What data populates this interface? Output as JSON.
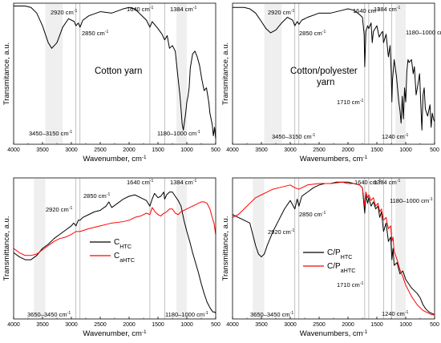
{
  "chart_data": [
    {
      "type": "line",
      "panel_position": "top-left",
      "title": "Cotton yarn",
      "xlabel": "Wavenumber, cm",
      "xlabel_sup": "-1",
      "ylabel": "Transmitance, a.u.",
      "xlim": [
        4000,
        500
      ],
      "xticks": [
        "4000",
        "3500",
        "3000",
        "2500",
        "2000",
        "1500",
        "1000",
        "500"
      ],
      "bands": [
        [
          3450,
          3150
        ],
        [
          1180,
          1000
        ]
      ],
      "vlines": [
        2920,
        2850,
        1640,
        1384
      ],
      "annotations": [
        {
          "text": "2920 cm",
          "sup": "-1",
          "x": 2920
        },
        {
          "text": "2850 cm",
          "sup": "-1",
          "x": 2850
        },
        {
          "text": "1640 cm",
          "sup": "-1",
          "x": 1640
        },
        {
          "text": "1384 cm",
          "sup": "-1",
          "x": 1384
        },
        {
          "text": "3450–3150 cm",
          "sup": "-1",
          "x": 3300
        },
        {
          "text": "1180–1000 cm",
          "sup": "-1",
          "x": 1090
        }
      ],
      "series": [
        {
          "color": "#000000",
          "x": [
            4000,
            3800,
            3700,
            3600,
            3500,
            3400,
            3340,
            3250,
            3150,
            3050,
            2950,
            2920,
            2880,
            2850,
            2800,
            2700,
            2500,
            2300,
            2100,
            2000,
            1900,
            1800,
            1700,
            1640,
            1600,
            1500,
            1430,
            1384,
            1340,
            1300,
            1250,
            1200,
            1160,
            1120,
            1100,
            1080,
            1060,
            1040,
            1020,
            1000,
            980,
            960,
            940,
            900,
            860,
            820,
            780,
            740,
            700,
            660,
            620,
            600,
            560,
            540,
            520,
            500
          ],
          "y": [
            0.98,
            0.98,
            0.97,
            0.93,
            0.84,
            0.72,
            0.68,
            0.72,
            0.83,
            0.89,
            0.87,
            0.84,
            0.86,
            0.83,
            0.88,
            0.91,
            0.94,
            0.93,
            0.96,
            0.97,
            0.96,
            0.92,
            0.88,
            0.83,
            0.87,
            0.82,
            0.78,
            0.74,
            0.77,
            0.68,
            0.7,
            0.66,
            0.5,
            0.35,
            0.25,
            0.14,
            0.1,
            0.16,
            0.22,
            0.3,
            0.34,
            0.4,
            0.54,
            0.64,
            0.66,
            0.62,
            0.56,
            0.46,
            0.38,
            0.4,
            0.3,
            0.22,
            0.14,
            0.06,
            0.12,
            0.04
          ]
        }
      ]
    },
    {
      "type": "line",
      "panel_position": "top-right",
      "title": "Cotton/polyester",
      "title_line2": "yarn",
      "xlabel": "Wavenumbers, cm",
      "xlabel_sup": "-1",
      "ylabel": "Transmitance, a.u.",
      "xlim": [
        4000,
        500
      ],
      "xticks": [
        "4000",
        "3500",
        "3000",
        "2500",
        "2000",
        "1500",
        "1000",
        "500"
      ],
      "bands": [
        [
          3450,
          3150
        ],
        [
          1180,
          1000
        ]
      ],
      "vlines": [
        2920,
        2850,
        1710,
        1640,
        1384,
        1240
      ],
      "annotations": [
        {
          "text": "2920 cm",
          "sup": "-1",
          "x": 2920
        },
        {
          "text": "2850 cm",
          "sup": "-1",
          "x": 2850
        },
        {
          "text": "1640 cm",
          "sup": "-1",
          "x": 1640
        },
        {
          "text": "1384 cm",
          "sup": "-1",
          "x": 1384
        },
        {
          "text": "1180–1000 cm",
          "sup": "-1",
          "x": 1090
        },
        {
          "text": "1710 cm",
          "sup": "-1",
          "x": 1710
        },
        {
          "text": "1240 cm",
          "sup": "-1",
          "x": 1240
        },
        {
          "text": "3450–3150 cm",
          "sup": "-1",
          "x": 3300
        }
      ],
      "series": [
        {
          "color": "#000000",
          "x": [
            4000,
            3800,
            3700,
            3600,
            3500,
            3420,
            3340,
            3250,
            3150,
            3050,
            2960,
            2920,
            2880,
            2850,
            2800,
            2700,
            2500,
            2300,
            2100,
            2000,
            1900,
            1800,
            1750,
            1720,
            1710,
            1690,
            1660,
            1640,
            1600,
            1580,
            1560,
            1500,
            1460,
            1420,
            1400,
            1384,
            1340,
            1300,
            1270,
            1250,
            1240,
            1230,
            1200,
            1160,
            1120,
            1100,
            1080,
            1060,
            1040,
            1020,
            1000,
            980,
            960,
            940,
            900,
            870,
            850,
            820,
            790,
            760,
            740,
            720,
            700,
            680,
            660,
            620,
            580,
            560,
            540,
            520,
            500
          ],
          "y": [
            0.97,
            0.97,
            0.96,
            0.93,
            0.87,
            0.82,
            0.79,
            0.81,
            0.86,
            0.9,
            0.88,
            0.84,
            0.87,
            0.85,
            0.88,
            0.9,
            0.93,
            0.93,
            0.95,
            0.96,
            0.95,
            0.92,
            0.9,
            0.78,
            0.55,
            0.8,
            0.84,
            0.82,
            0.86,
            0.72,
            0.8,
            0.84,
            0.76,
            0.79,
            0.8,
            0.72,
            0.78,
            0.62,
            0.7,
            0.5,
            0.3,
            0.45,
            0.6,
            0.48,
            0.3,
            0.24,
            0.15,
            0.34,
            0.18,
            0.4,
            0.3,
            0.52,
            0.6,
            0.58,
            0.6,
            0.5,
            0.55,
            0.35,
            0.42,
            0.5,
            0.3,
            0.1,
            0.35,
            0.4,
            0.25,
            0.2,
            0.28,
            0.12,
            0.22,
            0.18,
            0.16
          ]
        }
      ]
    },
    {
      "type": "line",
      "panel_position": "bottom-left",
      "xlabel": "Wavenumber, cm",
      "xlabel_sup": "-1",
      "ylabel": "Transmittance, a.u.",
      "xlim": [
        4000,
        500
      ],
      "xticks": [
        "4000",
        "3500",
        "3000",
        "2500",
        "2000",
        "1500",
        "1000",
        "500"
      ],
      "bands": [
        [
          3650,
          3450
        ],
        [
          1180,
          1000
        ]
      ],
      "vlines": [
        2920,
        2850,
        1640,
        1384
      ],
      "annotations": [
        {
          "text": "2920 cm",
          "sup": "-1",
          "x": 2920
        },
        {
          "text": "2850 cm",
          "sup": "-1",
          "x": 2850
        },
        {
          "text": "1640 cm",
          "sup": "-1",
          "x": 1640
        },
        {
          "text": "1384 cm",
          "sup": "-1",
          "x": 1384
        },
        {
          "text": "3650–3450 cm",
          "sup": "-1",
          "x": 3550
        },
        {
          "text": "1180–1000 cm",
          "sup": "-1",
          "x": 1090
        }
      ],
      "legend": {
        "position": "center-left"
      },
      "series": [
        {
          "name": "C",
          "name_sub": "HTC",
          "color": "#000000",
          "x": [
            4000,
            3900,
            3800,
            3700,
            3600,
            3500,
            3400,
            3300,
            3200,
            3100,
            3000,
            2960,
            2920,
            2880,
            2850,
            2800,
            2700,
            2600,
            2500,
            2400,
            2350,
            2300,
            2200,
            2100,
            2000,
            1900,
            1800,
            1700,
            1640,
            1600,
            1560,
            1500,
            1450,
            1400,
            1384,
            1350,
            1300,
            1250,
            1200,
            1150,
            1100,
            1050,
            1000,
            950,
            900,
            850,
            800,
            750,
            700,
            650,
            600,
            550,
            520,
            500
          ],
          "y": [
            0.47,
            0.44,
            0.42,
            0.42,
            0.45,
            0.5,
            0.53,
            0.57,
            0.6,
            0.63,
            0.66,
            0.68,
            0.66,
            0.7,
            0.7,
            0.72,
            0.74,
            0.76,
            0.77,
            0.8,
            0.83,
            0.79,
            0.82,
            0.85,
            0.87,
            0.88,
            0.86,
            0.84,
            0.8,
            0.85,
            0.89,
            0.86,
            0.87,
            0.9,
            0.85,
            0.88,
            0.9,
            0.9,
            0.87,
            0.84,
            0.8,
            0.7,
            0.62,
            0.55,
            0.47,
            0.4,
            0.33,
            0.25,
            0.18,
            0.12,
            0.08,
            0.05,
            0.05,
            0.04
          ]
        },
        {
          "name": "C",
          "name_sub": "aHTC",
          "color": "#ff0000",
          "x": [
            4000,
            3900,
            3800,
            3700,
            3600,
            3500,
            3400,
            3300,
            3200,
            3100,
            3000,
            2920,
            2850,
            2700,
            2500,
            2300,
            2100,
            2000,
            1900,
            1800,
            1700,
            1640,
            1600,
            1550,
            1500,
            1450,
            1400,
            1384,
            1350,
            1300,
            1250,
            1200,
            1150,
            1100,
            1050,
            1000,
            950,
            900,
            850,
            800,
            750,
            700,
            650,
            600,
            560,
            530,
            500
          ],
          "y": [
            0.5,
            0.47,
            0.45,
            0.45,
            0.46,
            0.49,
            0.52,
            0.55,
            0.57,
            0.58,
            0.6,
            0.62,
            0.62,
            0.64,
            0.66,
            0.68,
            0.69,
            0.7,
            0.72,
            0.73,
            0.75,
            0.74,
            0.79,
            0.76,
            0.74,
            0.73,
            0.75,
            0.75,
            0.76,
            0.78,
            0.78,
            0.75,
            0.74,
            0.76,
            0.77,
            0.78,
            0.79,
            0.8,
            0.81,
            0.82,
            0.83,
            0.83,
            0.82,
            0.78,
            0.72,
            0.68,
            0.6
          ]
        }
      ]
    },
    {
      "type": "line",
      "panel_position": "bottom-right",
      "xlabel": "Wavenumbers, cm",
      "xlabel_sup": "-1",
      "ylabel": "Transmittance, a.u.",
      "xlim": [
        4000,
        500
      ],
      "xticks": [
        "4000",
        "3500",
        "3000",
        "2500",
        "2000",
        "1500",
        "1000",
        "500"
      ],
      "bands": [
        [
          3650,
          3450
        ],
        [
          1180,
          1000
        ]
      ],
      "vlines": [
        2920,
        2850,
        1710,
        1640,
        1384,
        1240
      ],
      "annotations": [
        {
          "text": "2920 cm",
          "sup": "-1",
          "x": 2920
        },
        {
          "text": "2850 cm",
          "sup": "-1",
          "x": 2850
        },
        {
          "text": "1640 cm",
          "sup": "-1",
          "x": 1640
        },
        {
          "text": "1384 cm",
          "sup": "-1",
          "x": 1384
        },
        {
          "text": "1180–1000 cm",
          "sup": "-1",
          "x": 1090
        },
        {
          "text": "1710 cm",
          "sup": "-1",
          "x": 1710
        },
        {
          "text": "1240 cm",
          "sup": "-1",
          "x": 1240
        },
        {
          "text": "3650–3450 cm",
          "sup": "-1",
          "x": 3550
        }
      ],
      "legend": {
        "position": "center-right"
      },
      "series": [
        {
          "name": "C/P",
          "name_sub": "HTC",
          "color": "#000000",
          "x": [
            4000,
            3900,
            3800,
            3700,
            3650,
            3600,
            3550,
            3500,
            3450,
            3400,
            3300,
            3200,
            3100,
            3000,
            2920,
            2880,
            2850,
            2800,
            2700,
            2600,
            2500,
            2400,
            2300,
            2200,
            2100,
            2000,
            1900,
            1800,
            1750,
            1710,
            1690,
            1660,
            1640,
            1600,
            1560,
            1520,
            1480,
            1450,
            1420,
            1384,
            1340,
            1300,
            1260,
            1240,
            1220,
            1200,
            1150,
            1100,
            1050,
            1000,
            950,
            900,
            850,
            800,
            750,
            700,
            650,
            600,
            550,
            500
          ],
          "y": [
            0.74,
            0.72,
            0.7,
            0.68,
            0.6,
            0.52,
            0.46,
            0.44,
            0.46,
            0.52,
            0.62,
            0.7,
            0.78,
            0.84,
            0.78,
            0.85,
            0.8,
            0.87,
            0.9,
            0.93,
            0.95,
            0.96,
            0.96,
            0.97,
            0.97,
            0.97,
            0.96,
            0.95,
            0.93,
            0.75,
            0.88,
            0.82,
            0.86,
            0.8,
            0.83,
            0.78,
            0.8,
            0.72,
            0.76,
            0.62,
            0.68,
            0.55,
            0.58,
            0.42,
            0.5,
            0.38,
            0.4,
            0.32,
            0.34,
            0.28,
            0.25,
            0.22,
            0.2,
            0.18,
            0.15,
            0.1,
            0.07,
            0.05,
            0.04,
            0.03
          ]
        },
        {
          "name": "C/P",
          "name_sub": "aHTC",
          "color": "#ff0000",
          "x": [
            4000,
            3900,
            3800,
            3700,
            3600,
            3500,
            3400,
            3300,
            3200,
            3100,
            3000,
            2920,
            2850,
            2700,
            2500,
            2300,
            2100,
            2000,
            1900,
            1800,
            1750,
            1710,
            1690,
            1660,
            1640,
            1600,
            1560,
            1520,
            1480,
            1450,
            1420,
            1384,
            1340,
            1300,
            1260,
            1240,
            1220,
            1200,
            1150,
            1100,
            1050,
            1000,
            950,
            900,
            850,
            800,
            750,
            700,
            650,
            600,
            550,
            500
          ],
          "y": [
            0.72,
            0.74,
            0.78,
            0.82,
            0.86,
            0.88,
            0.9,
            0.92,
            0.93,
            0.94,
            0.95,
            0.93,
            0.92,
            0.95,
            0.96,
            0.96,
            0.97,
            0.96,
            0.96,
            0.95,
            0.93,
            0.8,
            0.9,
            0.86,
            0.88,
            0.84,
            0.86,
            0.8,
            0.82,
            0.76,
            0.78,
            0.7,
            0.72,
            0.64,
            0.66,
            0.55,
            0.58,
            0.48,
            0.42,
            0.35,
            0.3,
            0.24,
            0.2,
            0.16,
            0.13,
            0.1,
            0.08,
            0.06,
            0.05,
            0.04,
            0.03,
            0.03
          ]
        }
      ]
    }
  ]
}
